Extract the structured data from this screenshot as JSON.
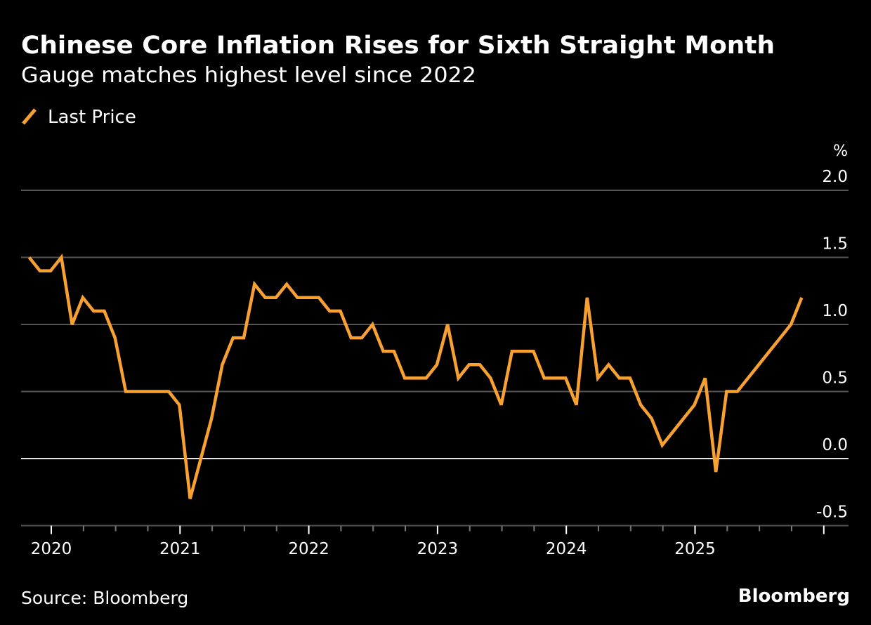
{
  "chart_data": {
    "type": "line",
    "title": "Chinese Core Inflation Rises for Sixth Straight Month",
    "subtitle": "Gauge matches highest level since 2022",
    "legend": [
      {
        "name": "Last Price",
        "color": "#f8a131"
      }
    ],
    "legend_placement": "top-left",
    "ylabel": "%",
    "ylim": [
      -0.5,
      2.0
    ],
    "yticks": [
      2.0,
      1.5,
      1.0,
      0.5,
      0.0,
      -0.5
    ],
    "ytick_labels": [
      "2.0",
      "1.5",
      "1.0",
      "0.5",
      "0.0",
      "-0.5"
    ],
    "xlim": [
      2019.77,
      2026.2
    ],
    "xticks": [
      2020,
      2021,
      2022,
      2023,
      2024,
      2025
    ],
    "xtick_labels": [
      "2020",
      "2021",
      "2022",
      "2023",
      "2024",
      "2025"
    ],
    "grid": true,
    "start_month": "2019-10",
    "series": [
      {
        "name": "Last Price",
        "values": [
          1.5,
          1.4,
          1.4,
          1.5,
          1.0,
          1.2,
          1.1,
          1.1,
          0.9,
          0.5,
          0.5,
          0.5,
          0.5,
          0.5,
          0.4,
          -0.3,
          0.0,
          0.3,
          0.7,
          0.9,
          0.9,
          1.3,
          1.2,
          1.2,
          1.3,
          1.2,
          1.2,
          1.2,
          1.1,
          1.1,
          0.9,
          0.9,
          1.0,
          0.8,
          0.8,
          0.6,
          0.6,
          0.6,
          0.7,
          1.0,
          0.6,
          0.7,
          0.7,
          0.6,
          0.4,
          0.8,
          0.8,
          0.8,
          0.6,
          0.6,
          0.6,
          0.4,
          1.2,
          0.6,
          0.7,
          0.6,
          0.6,
          0.4,
          0.3,
          0.1,
          0.2,
          0.3,
          0.4,
          0.6,
          -0.1,
          0.5,
          0.5,
          0.6,
          0.7,
          0.8,
          0.9,
          1.0,
          1.2
        ]
      }
    ],
    "source": "Source: Bloomberg",
    "brand": "Bloomberg"
  },
  "colors": {
    "line": "#f8a131",
    "grid": "#555555",
    "zero": "#e6e6e6",
    "text": "#ffffff"
  }
}
